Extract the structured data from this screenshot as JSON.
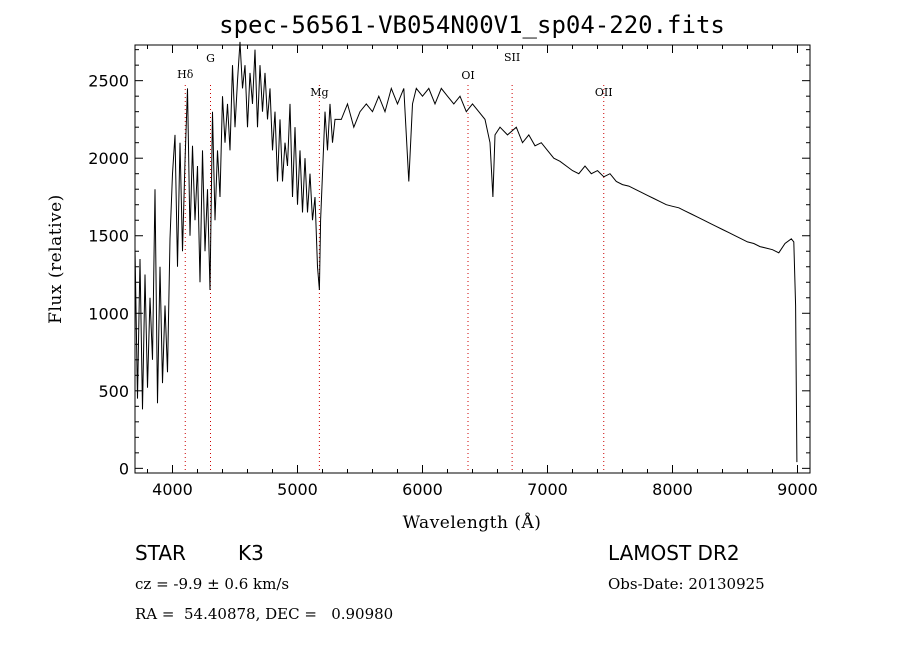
{
  "chart_data": {
    "type": "line",
    "title": "spec-56561-VB054N00V1_sp04-220.fits",
    "xlabel": "Wavelength (Å)",
    "ylabel": "Flux (relative)",
    "xlim": [
      3700,
      9100
    ],
    "ylim": [
      -30,
      2730
    ],
    "x_ticks": [
      4000,
      5000,
      6000,
      7000,
      8000,
      9000
    ],
    "y_ticks": [
      0,
      500,
      1000,
      1500,
      2000,
      2500
    ],
    "x_tick_labels": [
      "4000",
      "5000",
      "6000",
      "7000",
      "8000",
      "9000"
    ],
    "y_tick_labels": [
      "0",
      "500",
      "1000",
      "1500",
      "2000",
      "2500"
    ],
    "grid": false,
    "series": [
      {
        "name": "flux",
        "x": [
          3700,
          3720,
          3740,
          3760,
          3780,
          3800,
          3820,
          3840,
          3860,
          3880,
          3900,
          3920,
          3940,
          3960,
          3980,
          4000,
          4020,
          4040,
          4060,
          4080,
          4100,
          4120,
          4140,
          4160,
          4180,
          4200,
          4220,
          4240,
          4260,
          4280,
          4300,
          4320,
          4340,
          4360,
          4380,
          4400,
          4420,
          4440,
          4460,
          4480,
          4500,
          4520,
          4540,
          4560,
          4580,
          4600,
          4620,
          4640,
          4660,
          4680,
          4700,
          4720,
          4740,
          4760,
          4780,
          4800,
          4820,
          4840,
          4860,
          4880,
          4900,
          4920,
          4940,
          4960,
          4980,
          5000,
          5020,
          5040,
          5060,
          5080,
          5100,
          5120,
          5140,
          5160,
          5175,
          5185,
          5200,
          5220,
          5240,
          5260,
          5280,
          5300,
          5350,
          5400,
          5450,
          5500,
          5550,
          5600,
          5650,
          5700,
          5750,
          5800,
          5850,
          5890,
          5920,
          5950,
          6000,
          6050,
          6100,
          6150,
          6200,
          6250,
          6300,
          6350,
          6400,
          6450,
          6500,
          6540,
          6563,
          6580,
          6620,
          6680,
          6750,
          6800,
          6850,
          6900,
          6950,
          7000,
          7050,
          7100,
          7150,
          7200,
          7250,
          7300,
          7350,
          7400,
          7450,
          7500,
          7550,
          7600,
          7650,
          7700,
          7750,
          7800,
          7850,
          7900,
          7950,
          8000,
          8050,
          8100,
          8150,
          8200,
          8250,
          8300,
          8350,
          8400,
          8450,
          8500,
          8550,
          8600,
          8650,
          8700,
          8750,
          8800,
          8850,
          8900,
          8950,
          8970,
          8985,
          8995
        ],
        "values": [
          1420,
          450,
          1350,
          380,
          1250,
          520,
          1100,
          700,
          1800,
          420,
          1300,
          550,
          1050,
          620,
          1480,
          1900,
          2150,
          1300,
          2100,
          1400,
          1980,
          2450,
          1500,
          2080,
          1600,
          1950,
          1200,
          2050,
          1400,
          1800,
          1150,
          2300,
          1600,
          2050,
          1750,
          2400,
          2100,
          2350,
          2050,
          2600,
          2200,
          2500,
          2750,
          2450,
          2600,
          2200,
          2550,
          2350,
          2700,
          2200,
          2600,
          2300,
          2550,
          2250,
          2450,
          2050,
          2300,
          1850,
          2250,
          1850,
          2100,
          1950,
          2350,
          1750,
          2200,
          1700,
          2050,
          1650,
          2000,
          1650,
          1900,
          1600,
          1750,
          1300,
          1150,
          1600,
          1900,
          2300,
          2050,
          2350,
          2100,
          2250,
          2250,
          2350,
          2200,
          2300,
          2350,
          2300,
          2400,
          2300,
          2450,
          2350,
          2450,
          1850,
          2350,
          2450,
          2400,
          2450,
          2350,
          2450,
          2400,
          2350,
          2400,
          2300,
          2350,
          2300,
          2250,
          2100,
          1750,
          2150,
          2200,
          2150,
          2200,
          2100,
          2150,
          2080,
          2100,
          2050,
          2000,
          1980,
          1950,
          1920,
          1900,
          1950,
          1900,
          1920,
          1880,
          1900,
          1850,
          1830,
          1820,
          1800,
          1780,
          1760,
          1740,
          1720,
          1700,
          1690,
          1680,
          1660,
          1640,
          1620,
          1600,
          1580,
          1560,
          1540,
          1520,
          1500,
          1480,
          1460,
          1450,
          1430,
          1420,
          1410,
          1390,
          1450,
          1480,
          1460,
          1050,
          40
        ]
      }
    ],
    "reference_lines": [
      {
        "label": "Hδ",
        "x": 4102
      },
      {
        "label": "G",
        "x": 4304
      },
      {
        "label": "Mg",
        "x": 5175
      },
      {
        "label": "OI",
        "x": 6364
      },
      {
        "label": "SII",
        "x": 6717
      },
      {
        "label": "OII",
        "x": 7450
      }
    ]
  },
  "info": {
    "object_class": "STAR",
    "subclass": "K3",
    "survey": "LAMOST DR2",
    "redshift": "cz = -9.9 ± 0.6 km/s",
    "obs_date": "Obs-Date: 20130925",
    "coords": "RA =  54.40878, DEC =   0.90980"
  },
  "colors": {
    "line": "#000000",
    "reference_line": "#cc0000",
    "axis": "#000000",
    "background": "#ffffff"
  }
}
